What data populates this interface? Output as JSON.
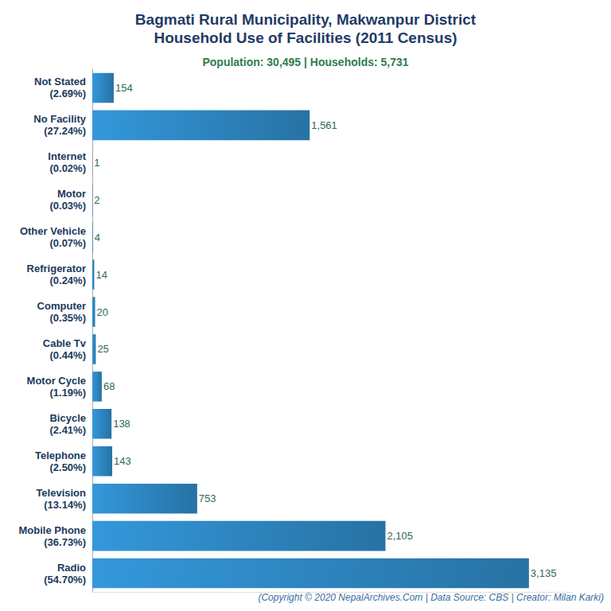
{
  "chart_data": {
    "type": "bar",
    "orientation": "horizontal",
    "title": "Bagmati Rural Municipality, Makwanpur District\nHousehold Use of Facilities (2011 Census)",
    "subtitle": "Population: 30,495 | Households: 5,731",
    "caption": "(Copyright © 2020 NepalArchives.Com | Data Source: CBS | Creator: Milan Karki)",
    "categories": [
      "Not Stated\n(2.69%)",
      "No Facility\n(27.24%)",
      "Internet\n(0.02%)",
      "Motor\n(0.03%)",
      "Other Vehicle\n(0.07%)",
      "Refrigerator\n(0.24%)",
      "Computer\n(0.35%)",
      "Cable Tv\n(0.44%)",
      "Motor Cycle\n(1.19%)",
      "Bicycle\n(2.41%)",
      "Telephone\n(2.50%)",
      "Television\n(13.14%)",
      "Mobile Phone\n(36.73%)",
      "Radio\n(54.70%)"
    ],
    "values": [
      154,
      1561,
      1,
      2,
      4,
      14,
      20,
      25,
      68,
      138,
      143,
      753,
      2105,
      3135
    ],
    "value_labels": [
      "154",
      "1,561",
      "1",
      "2",
      "4",
      "14",
      "20",
      "25",
      "68",
      "138",
      "143",
      "753",
      "2,105",
      "3,135"
    ],
    "color": "#3498db",
    "xlim": [
      0,
      3450
    ],
    "grid": false,
    "data_labels": true,
    "tick_labels": "y"
  }
}
